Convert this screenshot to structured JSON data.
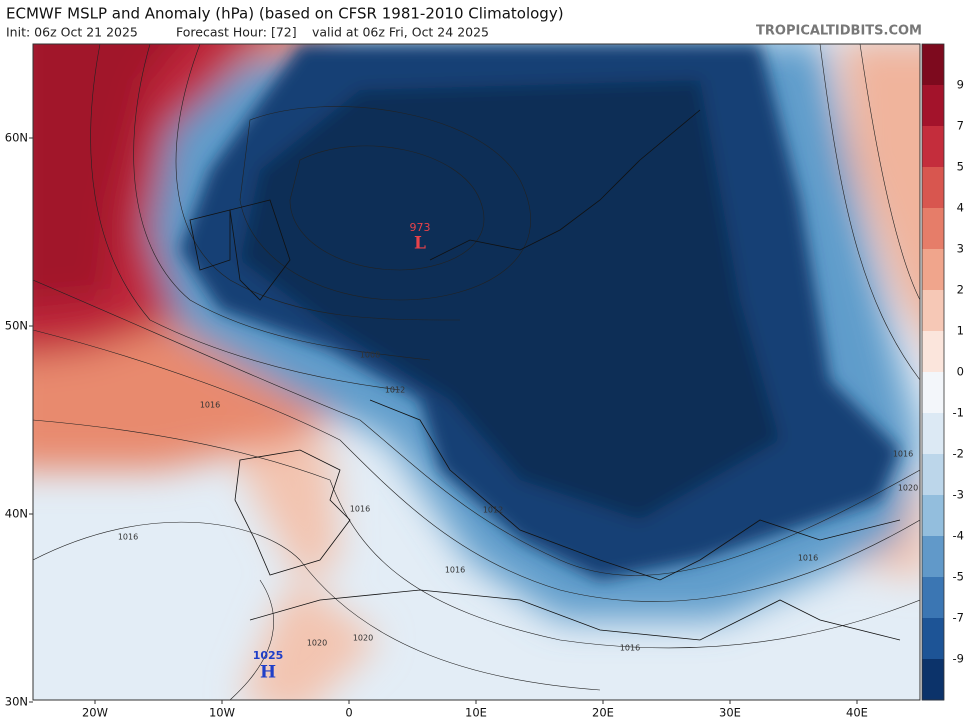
{
  "header": {
    "title": "ECMWF MSLP and Anomaly (hPa) (based on CFSR 1981-2010 Climatology)",
    "init": "Init: 06z Oct 21 2025",
    "forecast_hour": "Forecast Hour: [72]",
    "valid": "valid at 06z Fri, Oct 24 2025",
    "source": "TROPICALTIDBITS.COM"
  },
  "map": {
    "lat_labels": [
      "60N",
      "50N",
      "40N",
      "30N"
    ],
    "lon_labels": [
      "20W",
      "10W",
      "0",
      "10E",
      "20E",
      "30E",
      "40E"
    ],
    "lows": [
      {
        "value": "973",
        "symbol": "L"
      }
    ],
    "highs": [
      {
        "value": "1025",
        "symbol": "H"
      }
    ],
    "contour_labels": [
      "1008",
      "1012",
      "1016",
      "1016",
      "1012",
      "1016",
      "1016",
      "1016",
      "1020",
      "1020",
      "1016",
      "1016",
      "1020"
    ]
  },
  "colorbar": {
    "labels": [
      9,
      7,
      5,
      4,
      3,
      2,
      1,
      0,
      -1,
      -2,
      -3,
      -4,
      -5,
      -7,
      -9
    ]
  }
}
